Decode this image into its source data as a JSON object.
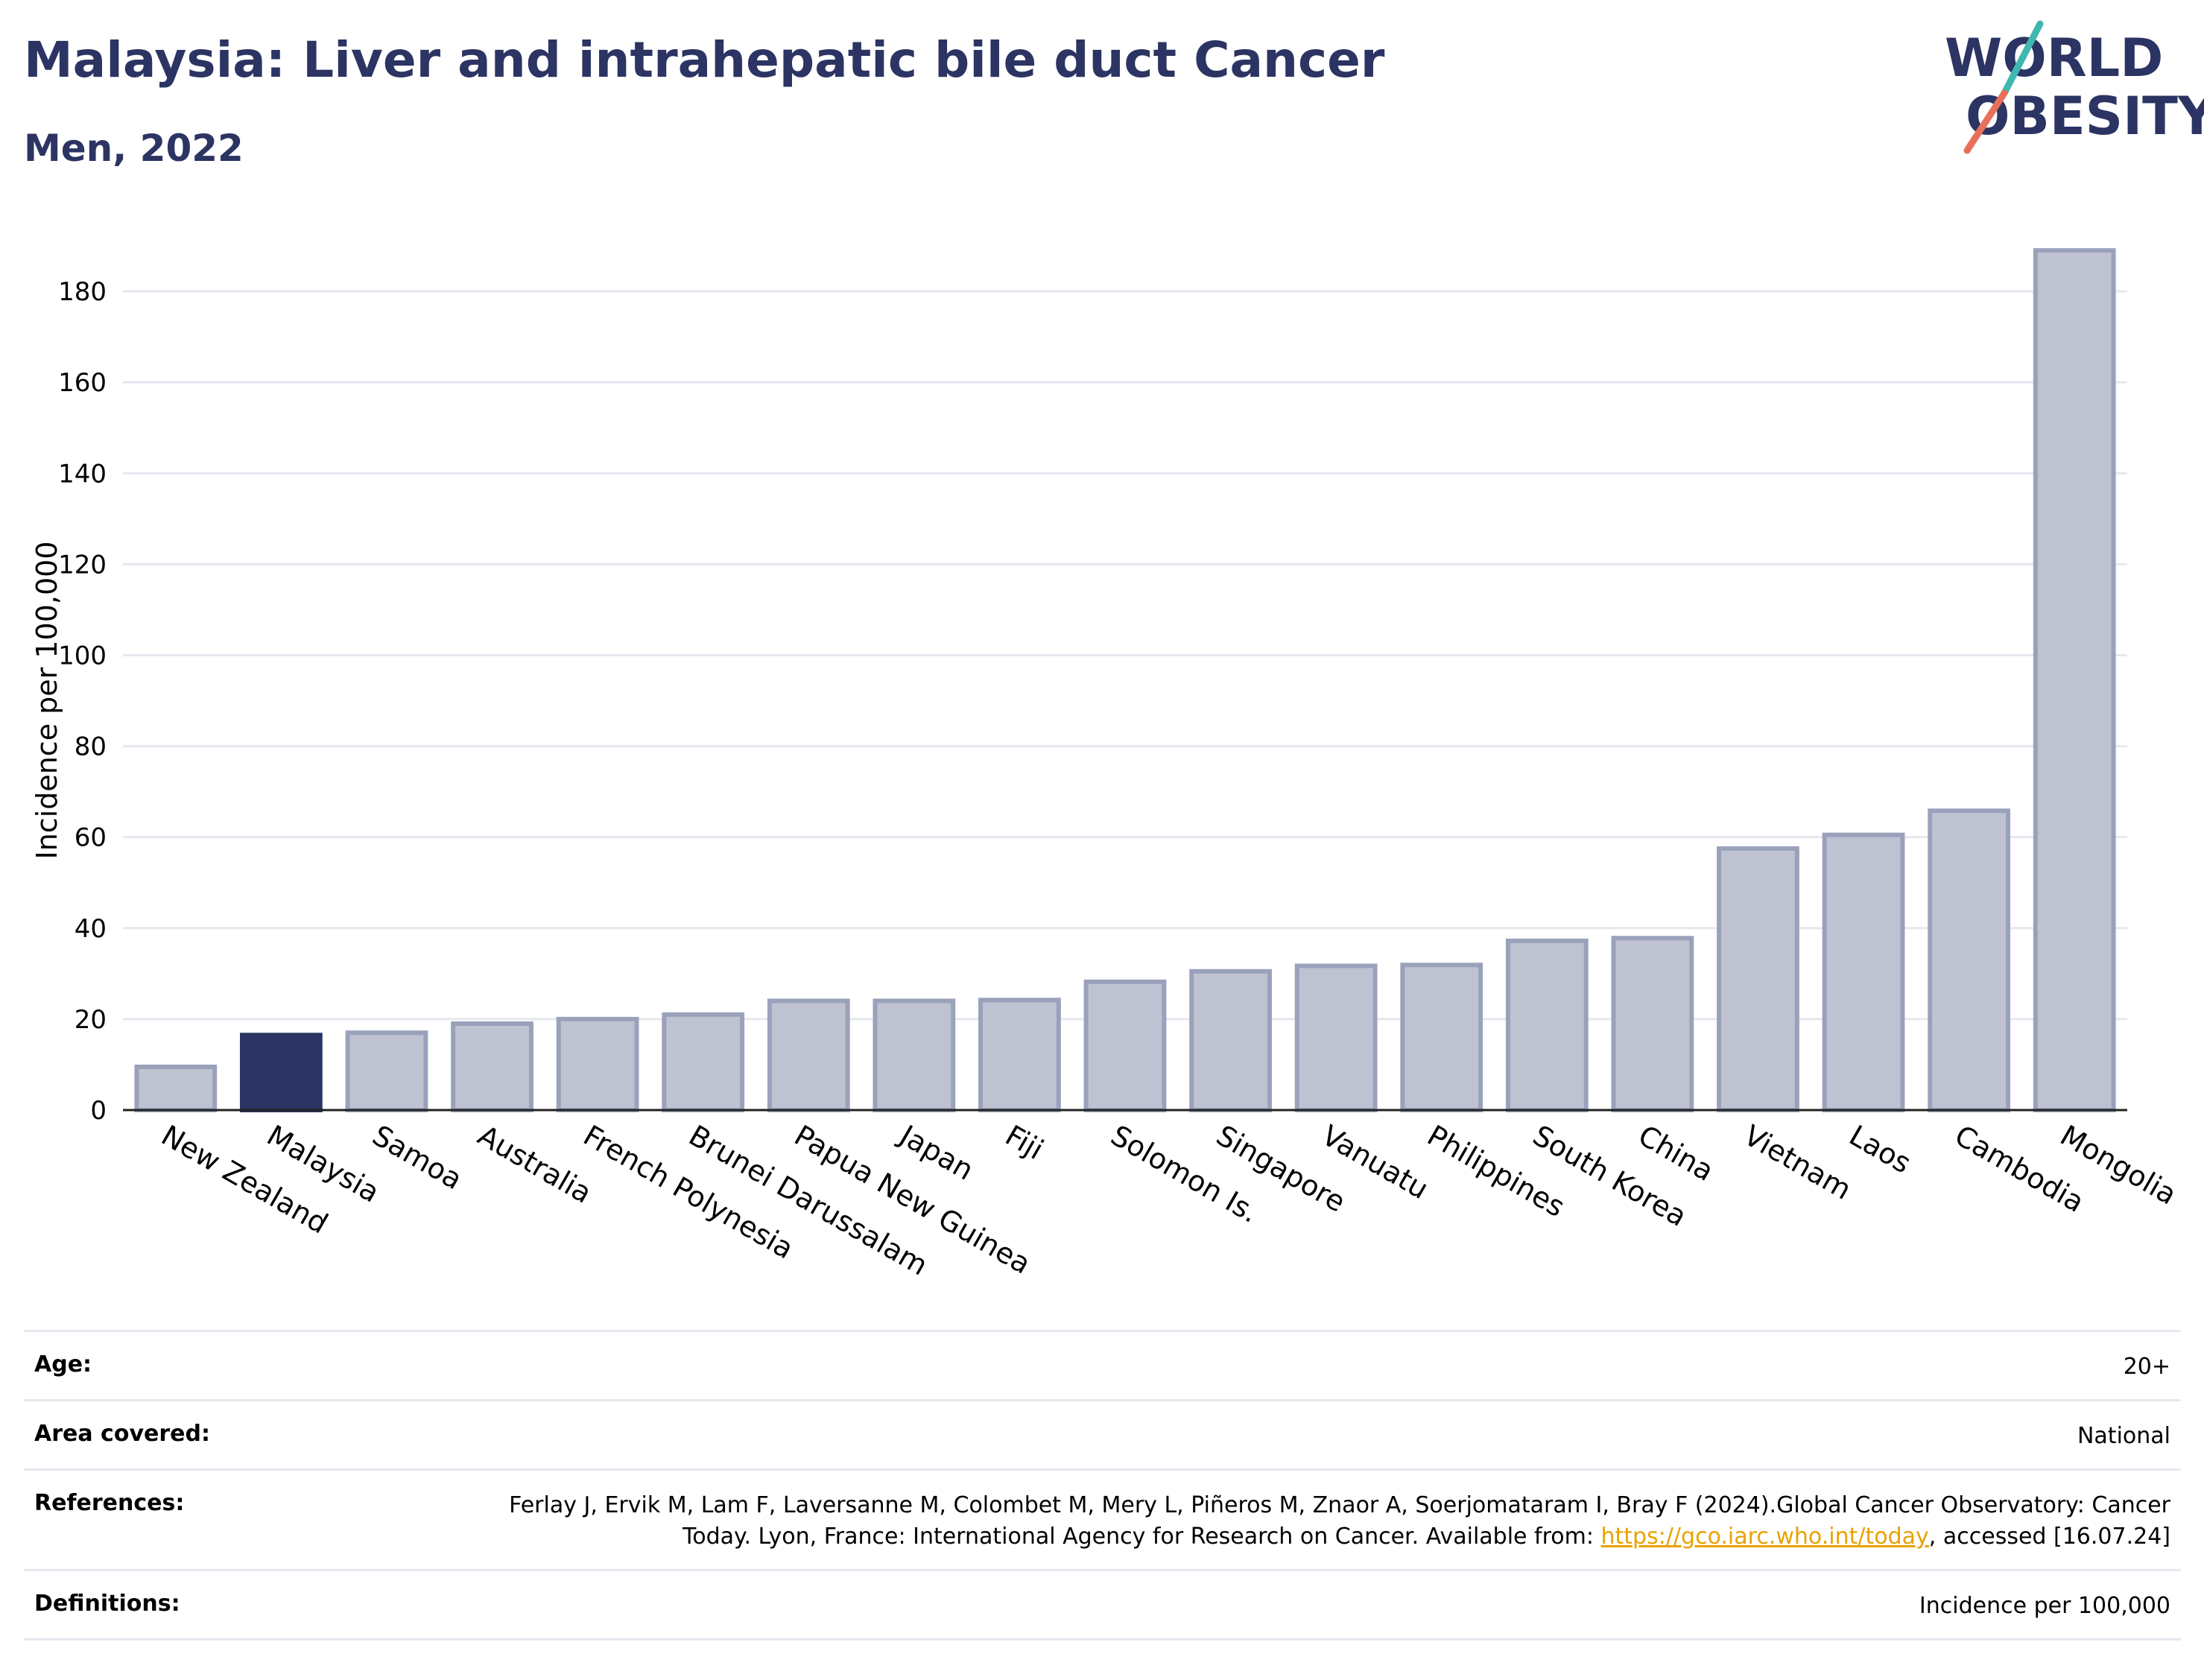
{
  "header": {
    "title": "Malaysia: Liver and intrahepatic bile duct Cancer",
    "subtitle": "Men, 2022"
  },
  "logo": {
    "line1": "WORLD",
    "line2": "OBESITY",
    "colors": {
      "text": "#2b3462",
      "slash_top": "#3fb8b0",
      "slash_bottom": "#e8705a"
    }
  },
  "colors": {
    "highlight_bar": "#2b3462",
    "bar_fill": "#bfc3d1",
    "bar_stroke": "#9aa1bb",
    "grid": "#e6e8ef",
    "link": "#e8a200"
  },
  "chart_data": {
    "type": "bar",
    "title": "",
    "xlabel": "",
    "ylabel": "Incidence per 100,000",
    "ylim": [
      0,
      190
    ],
    "yticks": [
      0,
      20,
      40,
      60,
      80,
      100,
      120,
      140,
      160,
      180
    ],
    "grid": true,
    "highlight": "Malaysia",
    "categories": [
      "New Zealand",
      "Malaysia",
      "Samoa",
      "Australia",
      "French Polynesia",
      "Brunei Darussalam",
      "Papua New Guinea",
      "Japan",
      "Fiji",
      "Solomon Is.",
      "Singapore",
      "Vanuatu",
      "Philippines",
      "South Korea",
      "China",
      "Vietnam",
      "Laos",
      "Cambodia",
      "Mongolia"
    ],
    "values": [
      9.5,
      16.5,
      17.0,
      19.0,
      20.0,
      21.0,
      24.0,
      24.0,
      24.2,
      28.2,
      30.5,
      31.7,
      31.9,
      37.2,
      37.8,
      57.5,
      60.5,
      65.8,
      189.0
    ]
  },
  "meta": {
    "rows": [
      {
        "label": "Age:",
        "value": "20+"
      },
      {
        "label": "Area covered:",
        "value": "National"
      },
      {
        "label": "References:",
        "value_pre": "Ferlay J, Ervik M, Lam F, Laversanne M, Colombet M, Mery L, Piñeros M, Znaor A, Soerjomataram I, Bray F (2024).Global Cancer Observatory: Cancer Today. Lyon, France: International Agency for Research on Cancer. Available from: ",
        "link": "https://gco.iarc.who.int/today",
        "value_post": ", accessed [16.07.24]"
      },
      {
        "label": "Definitions:",
        "value": "Incidence per 100,000"
      }
    ]
  }
}
